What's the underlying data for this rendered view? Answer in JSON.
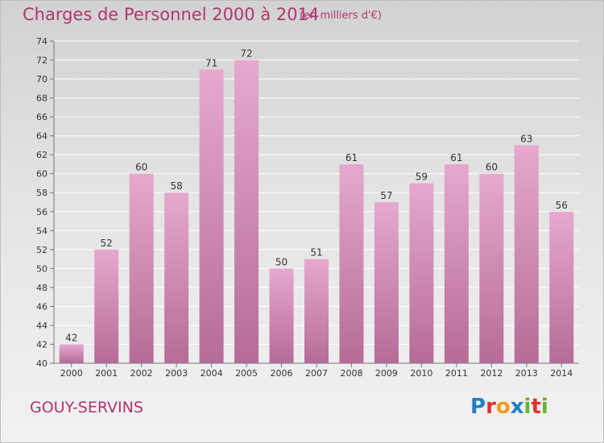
{
  "header": {
    "title": "Charges de Personnel 2000 à 2014",
    "subtitle": "(en milliers d'€)"
  },
  "footer": {
    "commune": "GOUY-SERVINS",
    "brand_letters": [
      "P",
      "r",
      "o",
      "x",
      "i",
      "t",
      "i"
    ],
    "brand_colors": [
      "#1f7fc4",
      "#e2322b",
      "#f39a1e",
      "#1f7fc4",
      "#66b32e",
      "#e2322b",
      "#66b32e"
    ]
  },
  "colors": {
    "bar_light": "#e6a9cd",
    "bar_dark": "#b56c97",
    "grid": "#ffffff",
    "text_accent": "#b2356f"
  },
  "chart_data": {
    "type": "bar",
    "categories": [
      "2000",
      "2001",
      "2002",
      "2003",
      "2004",
      "2005",
      "2006",
      "2007",
      "2008",
      "2009",
      "2010",
      "2011",
      "2012",
      "2013",
      "2014"
    ],
    "values": [
      42,
      52,
      60,
      58,
      71,
      72,
      50,
      51,
      61,
      57,
      59,
      61,
      60,
      63,
      56
    ],
    "ylim": [
      40,
      74
    ],
    "yticks": [
      40,
      42,
      44,
      46,
      48,
      50,
      52,
      54,
      56,
      58,
      60,
      62,
      64,
      66,
      68,
      70,
      72,
      74
    ],
    "grid": true,
    "data_labels": true
  }
}
